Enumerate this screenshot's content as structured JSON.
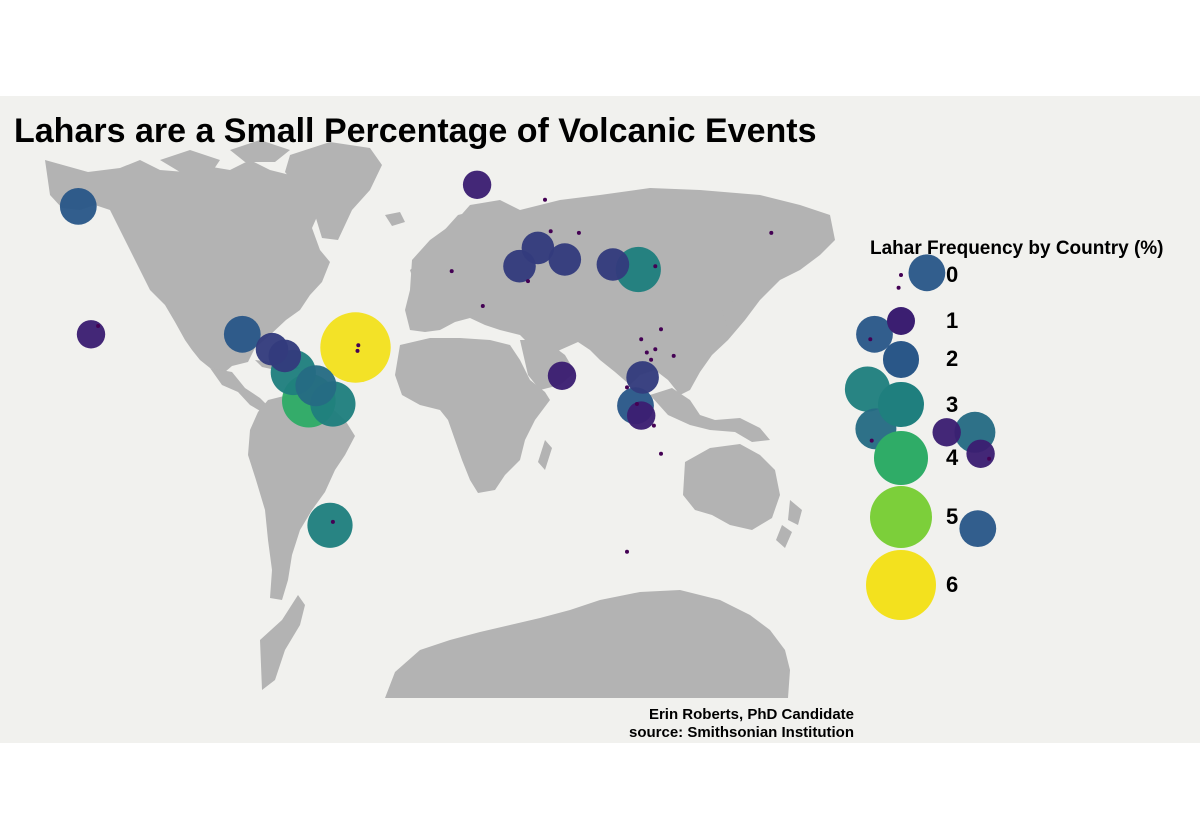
{
  "title": "Lahars are a Small Percentage of Volcanic Events",
  "legend": {
    "title": "Lahar Frequency by Country (%)",
    "items": [
      {
        "label": "0",
        "value": 0,
        "color": "#440154"
      },
      {
        "label": "1",
        "value": 1,
        "color": "#3b1e71"
      },
      {
        "label": "2",
        "value": 2,
        "color": "#2a5788"
      },
      {
        "label": "3",
        "value": 3,
        "color": "#1f7f7e"
      },
      {
        "label": "4",
        "value": 4,
        "color": "#2fac67"
      },
      {
        "label": "5",
        "value": 5,
        "color": "#7ccf3a"
      },
      {
        "label": "6",
        "value": 6,
        "color": "#f3e11e"
      }
    ]
  },
  "caption": {
    "line1": "Erin Roberts, PhD Candidate",
    "line2": "source: Smithsonian Institution"
  },
  "chart_data": {
    "type": "scatter",
    "description_of_encoding": "bubble map; circle size and color encode lahar frequency (%) by country",
    "points": [
      {
        "region": "Iceland",
        "lon": -19,
        "lat": 64.5,
        "value": 1.0
      },
      {
        "region": "Alaska / Aleutians",
        "lon": -160,
        "lat": 58,
        "value": 2.0
      },
      {
        "region": "Hawaii",
        "lon": -155.5,
        "lat": 19.5,
        "value": 1.0
      },
      {
        "region": "Hawaii (small)",
        "lon": -153,
        "lat": 22,
        "value": 0.0
      },
      {
        "region": "Mexico",
        "lon": -102,
        "lat": 19.5,
        "value": 2.0
      },
      {
        "region": "Guatemala",
        "lon": -91.5,
        "lat": 15,
        "value": 1.5
      },
      {
        "region": "El Salvador / Nicaragua",
        "lon": -87,
        "lat": 13,
        "value": 1.5
      },
      {
        "region": "West Indies",
        "lon": -62,
        "lat": 15.5,
        "value": 6.0
      },
      {
        "region": "West Indies (small)",
        "lon": -61.3,
        "lat": 14.5,
        "value": 0.0
      },
      {
        "region": "West Indies (small 2)",
        "lon": -61,
        "lat": 16.2,
        "value": 0.0
      },
      {
        "region": "Costa Rica / Panama",
        "lon": -84,
        "lat": 8,
        "value": 3.0
      },
      {
        "region": "Ecuador",
        "lon": -78.5,
        "lat": -0.5,
        "value": 4.0
      },
      {
        "region": "Colombia",
        "lon": -76,
        "lat": 4,
        "value": 2.5
      },
      {
        "region": "Peru",
        "lon": -70,
        "lat": -1.5,
        "value": 3.0
      },
      {
        "region": "Chile",
        "lon": -71,
        "lat": -38,
        "value": 3.0
      },
      {
        "region": "Chile (small)",
        "lon": -70,
        "lat": -37,
        "value": 0.0
      },
      {
        "region": "Canary Islands",
        "lon": -17,
        "lat": 28,
        "value": 0.0
      },
      {
        "region": "Azores",
        "lon": -28,
        "lat": 38.5,
        "value": 0.0
      },
      {
        "region": "Spain",
        "lon": -4,
        "lat": 40,
        "value": 1.5
      },
      {
        "region": "France",
        "lon": 2.5,
        "lat": 45.5,
        "value": 1.5
      },
      {
        "region": "Italy",
        "lon": 12,
        "lat": 42,
        "value": 1.5
      },
      {
        "region": "Turkey",
        "lon": 29,
        "lat": 40.5,
        "value": 1.5
      },
      {
        "region": "Caucasus",
        "lon": 38,
        "lat": 39,
        "value": 3.0
      },
      {
        "region": "Germany (small)",
        "lon": 7,
        "lat": 50.5,
        "value": 0.0
      },
      {
        "region": "Poland (small)",
        "lon": 17,
        "lat": 50,
        "value": 0.0
      },
      {
        "region": "Norway (small)",
        "lon": 5,
        "lat": 60,
        "value": 0.0
      },
      {
        "region": "Algeria (small)",
        "lon": -1,
        "lat": 35.5,
        "value": 0.0
      },
      {
        "region": "Armenia (small)",
        "lon": 44,
        "lat": 40,
        "value": 0.0
      },
      {
        "region": "Russia (small)",
        "lon": 85,
        "lat": 50,
        "value": 0.0
      },
      {
        "region": "Red Sea (small)",
        "lon": 39,
        "lat": 18,
        "value": 0.0
      },
      {
        "region": "Eritrea (small)",
        "lon": 41,
        "lat": 14,
        "value": 0.0
      },
      {
        "region": "Djibouti (small)",
        "lon": 42.5,
        "lat": 11.8,
        "value": 0.0
      },
      {
        "region": "Yemen (small)",
        "lon": 44,
        "lat": 15,
        "value": 0.0
      },
      {
        "region": "Saudi Arabia (small)",
        "lon": 46,
        "lat": 21,
        "value": 0.0
      },
      {
        "region": "Oman (small)",
        "lon": 50.5,
        "lat": 13,
        "value": 0.0
      },
      {
        "region": "Cameroon",
        "lon": 11,
        "lat": 7,
        "value": 1.0
      },
      {
        "region": "Ethiopia",
        "lon": 39.5,
        "lat": 6.5,
        "value": 1.5
      },
      {
        "region": "Kenya / Tanzania",
        "lon": 37,
        "lat": -2,
        "value": 2.0
      },
      {
        "region": "Tanzania",
        "lon": 39,
        "lat": -5,
        "value": 1.0
      },
      {
        "region": "DR Congo (small)",
        "lon": 34,
        "lat": 3.5,
        "value": 0.0
      },
      {
        "region": "Comoros (small)",
        "lon": 43.5,
        "lat": -8,
        "value": 0.0
      },
      {
        "region": "Comoros (small 2)",
        "lon": 37.5,
        "lat": -1.5,
        "value": 0.0
      },
      {
        "region": "Madagascar (small)",
        "lon": 46,
        "lat": -16.5,
        "value": 0.0
      },
      {
        "region": "Tristan da Cunha",
        "lon": 34,
        "lat": -46,
        "value": 0.0
      },
      {
        "region": "Japan",
        "lon": 140,
        "lat": 38,
        "value": 2.0
      },
      {
        "region": "Korea (small)",
        "lon": 130,
        "lat": 33.5,
        "value": 0.0
      },
      {
        "region": "Taiwan",
        "lon": 121.5,
        "lat": 19.5,
        "value": 2.0
      },
      {
        "region": "Philippines (small)",
        "lon": 120,
        "lat": 18,
        "value": 0.0
      },
      {
        "region": "Indonesia",
        "lon": 119,
        "lat": 3,
        "value": 3.0
      },
      {
        "region": "Java",
        "lon": 122,
        "lat": -9,
        "value": 2.5
      },
      {
        "region": "Timor (small)",
        "lon": 120.5,
        "lat": -12.5,
        "value": 0.0
      },
      {
        "region": "Papua New Guinea",
        "lon": 147,
        "lat": -10,
        "value": 1.0
      },
      {
        "region": "Solomon Islands",
        "lon": 157,
        "lat": -10,
        "value": 2.5
      },
      {
        "region": "Vanuatu",
        "lon": 159,
        "lat": -16.5,
        "value": 1.0
      },
      {
        "region": "Vanuatu (small)",
        "lon": 162,
        "lat": -18,
        "value": 0.0
      },
      {
        "region": "New Zealand",
        "lon": 158,
        "lat": -39,
        "value": 2.0
      }
    ],
    "xlim": [
      -170,
      180
    ],
    "ylim": [
      -90,
      84
    ],
    "legend_placement": "right"
  }
}
